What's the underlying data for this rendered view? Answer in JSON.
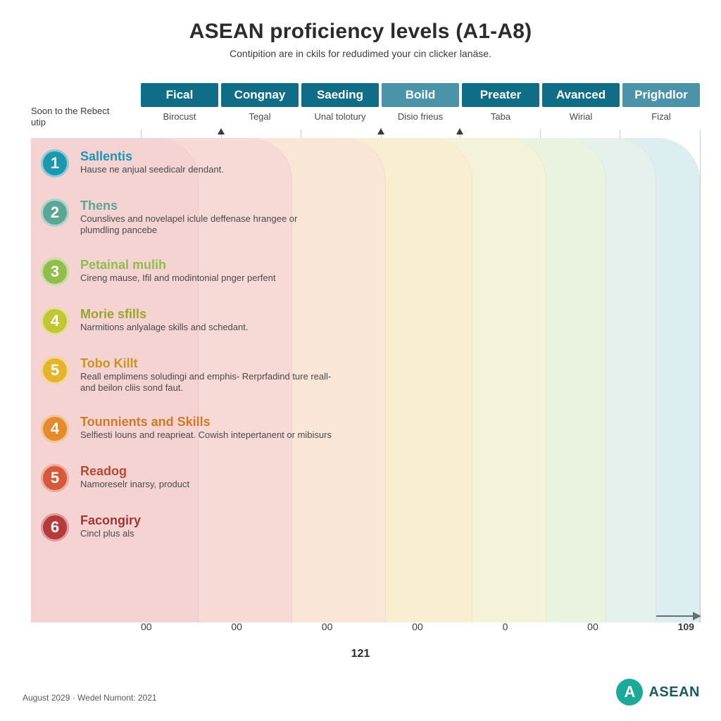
{
  "title": "ASEAN proficiency levels (A1-A8)",
  "subtitle": "Contipition are in ckils for redudimed your cin clicker lanäse.",
  "left_note": "Soon to the Rebect utip",
  "headers": [
    {
      "label": "Fical",
      "bg": "#0f6d87",
      "sub": "Birocust"
    },
    {
      "label": "Congnay",
      "bg": "#0f6d87",
      "sub": "Tegal"
    },
    {
      "label": "Saeding",
      "bg": "#0f6d87",
      "sub": "Unal tolotury"
    },
    {
      "label": "Boild",
      "bg": "#4a93a8",
      "sub": "Disio frieus"
    },
    {
      "label": "Preater",
      "bg": "#0f6d87",
      "sub": "Taba"
    },
    {
      "label": "Avanced",
      "bg": "#0f6d87",
      "sub": "Wirial"
    },
    {
      "label": "Prighdlor",
      "bg": "#4a93a8",
      "sub": "Fizal"
    }
  ],
  "grid_positions_pct": [
    0,
    14.3,
    28.6,
    42.9,
    57.1,
    71.4,
    85.7,
    100
  ],
  "arrow_markers_pct": [
    14.3,
    42.9,
    57.1
  ],
  "bands": [
    {
      "width_pct": 100,
      "color": "#dceeef"
    },
    {
      "width_pct": 93.5,
      "color": "#e5f1ec"
    },
    {
      "width_pct": 86,
      "color": "#eaf2e0"
    },
    {
      "width_pct": 77,
      "color": "#f4f2d8"
    },
    {
      "width_pct": 66,
      "color": "#f9eed2"
    },
    {
      "width_pct": 53,
      "color": "#fae6d6"
    },
    {
      "width_pct": 39,
      "color": "#f7dad6"
    },
    {
      "width_pct": 25,
      "color": "#f5d3d3"
    }
  ],
  "levels": [
    {
      "num": "1",
      "badge_bg": "#1d96b0",
      "title_color": "#1d96b0",
      "title": "Sallentis",
      "desc": "Hause ne anjual seedicalr dendant."
    },
    {
      "num": "2",
      "badge_bg": "#5ba796",
      "title_color": "#5ba796",
      "title": "Thens",
      "desc": "Counslives and novelapel iclule deffenase hrangee or plumdling pancebe"
    },
    {
      "num": "3",
      "badge_bg": "#8fbf4a",
      "title_color": "#8fbf4a",
      "title": "Petainal mulih",
      "desc": "Cireng mause, Ifil and modintonial pnger perfent"
    },
    {
      "num": "4",
      "badge_bg": "#c3c634",
      "title_color": "#9aa62a",
      "title": "Morie sfills",
      "desc": "Narmitions anlyalage skills and schedant."
    },
    {
      "num": "5",
      "badge_bg": "#e7b32d",
      "title_color": "#c99424",
      "title": "Tobo Killt",
      "desc": "Reall emplimens soludingi and emphis-\nRerprfadind ture reall-and beilon cliis sond faut."
    },
    {
      "num": "4",
      "badge_bg": "#e68a2e",
      "title_color": "#d07a26",
      "title": "Tounnients and Skills",
      "desc": "Selfiesti louns and reaprieat.\nCowish intepertanent or mibisurs"
    },
    {
      "num": "5",
      "badge_bg": "#d65a3a",
      "title_color": "#b94a32",
      "title": "Readog",
      "desc": "Namoreselr inarsy, product"
    },
    {
      "num": "6",
      "badge_bg": "#b63a3a",
      "title_color": "#a23434",
      "title": "Facongiry",
      "desc": "Cincl plus als"
    }
  ],
  "axis_ticks": [
    "00",
    "00",
    "00",
    "00",
    "0",
    "00",
    "109"
  ],
  "center_number": "121",
  "footer_left": "August 2029 · Wedel Numont: 2021",
  "logo_text": "ASEAN",
  "logo_letter": "A"
}
